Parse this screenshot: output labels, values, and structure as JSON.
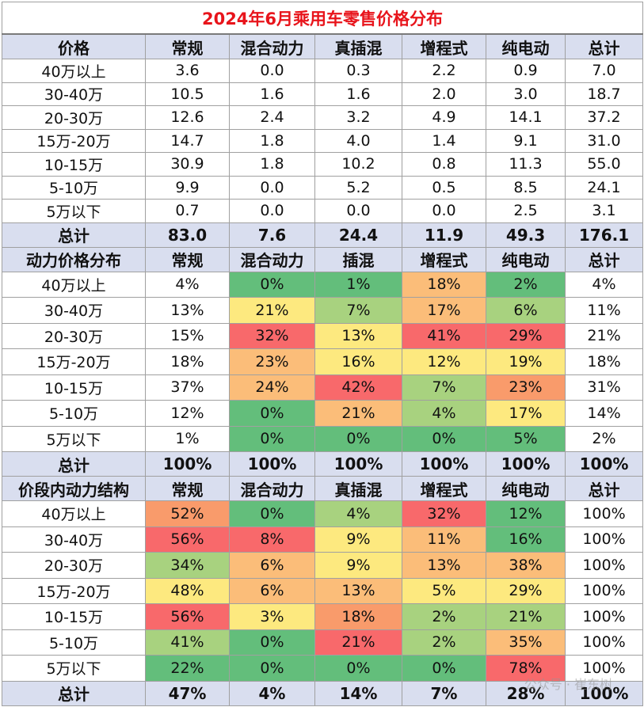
{
  "title": "2024年6月乘用车零售价格分布",
  "colors": {
    "green": "#63be7b",
    "lightgreen": "#a8d27f",
    "yellow": "#fde97f",
    "orange": "#fbbd79",
    "deeporange": "#f99b6b",
    "red": "#f8696b"
  },
  "sections": [
    {
      "header": [
        "价格",
        "常规",
        "混合动力",
        "真插混",
        "增程式",
        "纯电动",
        "总计"
      ],
      "rows": [
        {
          "label": "40万以上",
          "values": [
            "3.6",
            "0.0",
            "0.3",
            "2.2",
            "0.9",
            "7.0"
          ]
        },
        {
          "label": "30-40万",
          "values": [
            "10.5",
            "1.6",
            "1.6",
            "2.0",
            "3.0",
            "18.7"
          ]
        },
        {
          "label": "20-30万",
          "values": [
            "12.6",
            "2.4",
            "3.2",
            "4.9",
            "14.1",
            "37.2"
          ]
        },
        {
          "label": "15万-20万",
          "values": [
            "14.7",
            "1.8",
            "4.0",
            "1.4",
            "9.1",
            "31.0"
          ]
        },
        {
          "label": "10-15万",
          "values": [
            "30.9",
            "1.8",
            "10.2",
            "0.8",
            "11.3",
            "55.0"
          ]
        },
        {
          "label": "5-10万",
          "values": [
            "9.9",
            "0.0",
            "5.2",
            "0.5",
            "8.5",
            "24.1"
          ]
        },
        {
          "label": "5万以下",
          "values": [
            "0.7",
            "0.0",
            "0.0",
            "0.0",
            "2.5",
            "3.1"
          ]
        }
      ],
      "total": {
        "label": "总计",
        "values": [
          "83.0",
          "7.6",
          "24.4",
          "11.9",
          "49.3",
          "176.1"
        ]
      }
    },
    {
      "header": [
        "动力价格分布",
        "常规",
        "混合动力",
        "插混",
        "增程式",
        "纯电动",
        "总计"
      ],
      "rows": [
        {
          "label": "40万以上",
          "values": [
            "4%",
            "0%",
            "1%",
            "18%",
            "2%",
            "4%"
          ],
          "colors": [
            null,
            "green",
            "green",
            "orange",
            "green",
            null
          ]
        },
        {
          "label": "30-40万",
          "values": [
            "13%",
            "21%",
            "7%",
            "17%",
            "6%",
            "11%"
          ],
          "colors": [
            null,
            "yellow",
            "lightgreen",
            "orange",
            "lightgreen",
            null
          ]
        },
        {
          "label": "20-30万",
          "values": [
            "15%",
            "32%",
            "13%",
            "41%",
            "29%",
            "21%"
          ],
          "colors": [
            null,
            "red",
            "yellow",
            "red",
            "red",
            null
          ]
        },
        {
          "label": "15万-20万",
          "values": [
            "18%",
            "23%",
            "16%",
            "12%",
            "19%",
            "18%"
          ],
          "colors": [
            null,
            "orange",
            "yellow",
            "yellow",
            "yellow",
            null
          ]
        },
        {
          "label": "10-15万",
          "values": [
            "37%",
            "24%",
            "42%",
            "7%",
            "23%",
            "31%"
          ],
          "colors": [
            null,
            "orange",
            "red",
            "lightgreen",
            "deeporange",
            null
          ]
        },
        {
          "label": "5-10万",
          "values": [
            "12%",
            "0%",
            "21%",
            "4%",
            "17%",
            "14%"
          ],
          "colors": [
            null,
            "green",
            "orange",
            "lightgreen",
            "yellow",
            null
          ]
        },
        {
          "label": "5万以下",
          "values": [
            "1%",
            "0%",
            "0%",
            "0%",
            "5%",
            "2%"
          ],
          "colors": [
            null,
            "green",
            "green",
            "green",
            "green",
            null
          ]
        }
      ],
      "total": {
        "label": "总计",
        "values": [
          "100%",
          "100%",
          "100%",
          "100%",
          "100%",
          "100%"
        ]
      }
    },
    {
      "header": [
        "价段内动力结构",
        "常规",
        "混合动力",
        "真插混",
        "增程式",
        "纯电动",
        "总计"
      ],
      "rows": [
        {
          "label": "40万以上",
          "values": [
            "52%",
            "0%",
            "4%",
            "32%",
            "12%",
            "100%"
          ],
          "colors": [
            "deeporange",
            "green",
            "lightgreen",
            "red",
            "green",
            null
          ]
        },
        {
          "label": "30-40万",
          "values": [
            "56%",
            "8%",
            "9%",
            "11%",
            "16%",
            "100%"
          ],
          "colors": [
            "red",
            "red",
            "yellow",
            "orange",
            "green",
            null
          ]
        },
        {
          "label": "20-30万",
          "values": [
            "34%",
            "6%",
            "9%",
            "13%",
            "38%",
            "100%"
          ],
          "colors": [
            "lightgreen",
            "orange",
            "yellow",
            "orange",
            "orange",
            null
          ]
        },
        {
          "label": "15万-20万",
          "values": [
            "48%",
            "6%",
            "13%",
            "5%",
            "29%",
            "100%"
          ],
          "colors": [
            "yellow",
            "orange",
            "orange",
            "yellow",
            "yellow",
            null
          ]
        },
        {
          "label": "10-15万",
          "values": [
            "56%",
            "3%",
            "18%",
            "2%",
            "21%",
            "100%"
          ],
          "colors": [
            "red",
            "yellow",
            "deeporange",
            "lightgreen",
            "lightgreen",
            null
          ]
        },
        {
          "label": "5-10万",
          "values": [
            "41%",
            "0%",
            "21%",
            "2%",
            "35%",
            "100%"
          ],
          "colors": [
            "lightgreen",
            "green",
            "red",
            "lightgreen",
            "orange",
            null
          ]
        },
        {
          "label": "5万以下",
          "values": [
            "22%",
            "0%",
            "0%",
            "0%",
            "78%",
            "100%"
          ],
          "colors": [
            "green",
            "green",
            "green",
            "green",
            "red",
            null
          ]
        }
      ],
      "total": {
        "label": "总计",
        "values": [
          "47%",
          "4%",
          "14%",
          "7%",
          "28%",
          "100%"
        ]
      }
    }
  ],
  "watermark": "公众号 · 崔东树"
}
